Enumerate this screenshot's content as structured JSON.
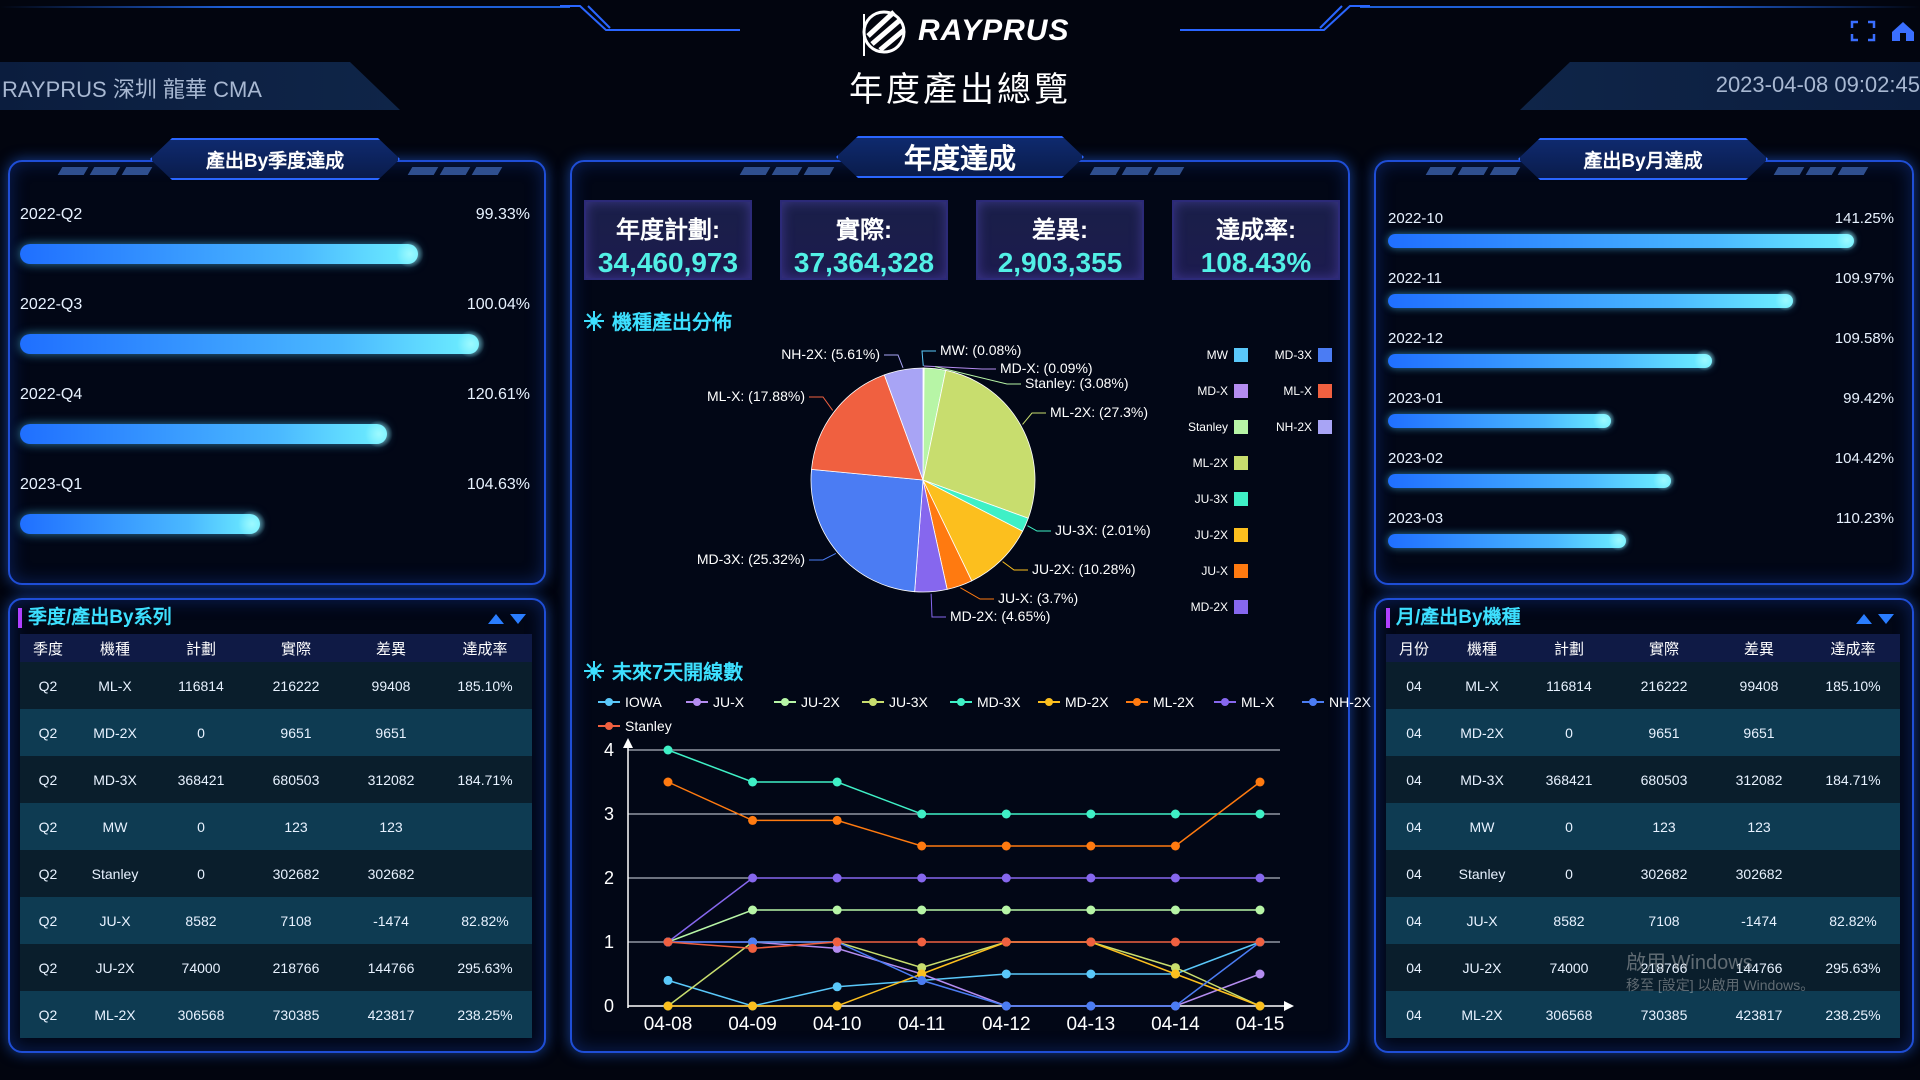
{
  "header": {
    "brand": "RAYPRUS",
    "title": "年度產出總覽",
    "site": "RAYPRUS 深圳 龍華 CMA",
    "datetime": "2023-04-08 09:02:45"
  },
  "quarter_panel": {
    "title": "產出By季度達成",
    "rows": [
      {
        "label": "2022-Q2",
        "pct": "99.33%",
        "value": 99.33
      },
      {
        "label": "2022-Q3",
        "pct": "100.04%",
        "value": 100.04
      },
      {
        "label": "2022-Q4",
        "pct": "120.61%",
        "value": 120.61
      },
      {
        "label": "2023-Q1",
        "pct": "104.63%",
        "value": 104.63
      }
    ]
  },
  "annual_panel": {
    "title": "年度達成",
    "kpis": [
      {
        "label": "年度計劃:",
        "value": "34,460,973"
      },
      {
        "label": "實際:",
        "value": "37,364,328"
      },
      {
        "label": "差異:",
        "value": "2,903,355"
      },
      {
        "label": "達成率:",
        "value": "108.43%"
      }
    ],
    "pie_title": "機種產出分佈",
    "line_title": "未來7天開線數"
  },
  "month_panel": {
    "title": "產出By月達成",
    "rows": [
      {
        "label": "2022-10",
        "pct": "141.25%",
        "value": 141.25
      },
      {
        "label": "2022-11",
        "pct": "109.97%",
        "value": 109.97
      },
      {
        "label": "2022-12",
        "pct": "109.58%",
        "value": 109.58
      },
      {
        "label": "2023-01",
        "pct": "99.42%",
        "value": 99.42
      },
      {
        "label": "2023-02",
        "pct": "104.42%",
        "value": 104.42
      },
      {
        "label": "2023-03",
        "pct": "110.23%",
        "value": 110.23
      }
    ]
  },
  "quarter_table": {
    "title": "季度/產出By系列",
    "headers": [
      "季度",
      "機種",
      "計劃",
      "實際",
      "差異",
      "達成率"
    ],
    "rows": [
      [
        "Q2",
        "ML-X",
        "116814",
        "216222",
        "99408",
        "185.10%"
      ],
      [
        "Q2",
        "MD-2X",
        "0",
        "9651",
        "9651",
        ""
      ],
      [
        "Q2",
        "MD-3X",
        "368421",
        "680503",
        "312082",
        "184.71%"
      ],
      [
        "Q2",
        "MW",
        "0",
        "123",
        "123",
        ""
      ],
      [
        "Q2",
        "Stanley",
        "0",
        "302682",
        "302682",
        ""
      ],
      [
        "Q2",
        "JU-X",
        "8582",
        "7108",
        "-1474",
        "82.82%"
      ],
      [
        "Q2",
        "JU-2X",
        "74000",
        "218766",
        "144766",
        "295.63%"
      ],
      [
        "Q2",
        "ML-2X",
        "306568",
        "730385",
        "423817",
        "238.25%"
      ]
    ]
  },
  "month_table": {
    "title": "月/產出By機種",
    "headers": [
      "月份",
      "機種",
      "計劃",
      "實際",
      "差異",
      "達成率"
    ],
    "rows": [
      [
        "04",
        "ML-X",
        "116814",
        "216222",
        "99408",
        "185.10%"
      ],
      [
        "04",
        "MD-2X",
        "0",
        "9651",
        "9651",
        ""
      ],
      [
        "04",
        "MD-3X",
        "368421",
        "680503",
        "312082",
        "184.71%"
      ],
      [
        "04",
        "MW",
        "0",
        "123",
        "123",
        ""
      ],
      [
        "04",
        "Stanley",
        "0",
        "302682",
        "302682",
        ""
      ],
      [
        "04",
        "JU-X",
        "8582",
        "7108",
        "-1474",
        "82.82%"
      ],
      [
        "04",
        "JU-2X",
        "74000",
        "218766",
        "144766",
        "295.63%"
      ],
      [
        "04",
        "ML-2X",
        "306568",
        "730385",
        "423817",
        "238.25%"
      ]
    ]
  },
  "watermark": {
    "line1": "啟用 Windows",
    "line2": "移至 [設定] 以啟用 Windows。"
  },
  "chart_data": [
    {
      "type": "pie",
      "title": "機種產出分佈",
      "slices": [
        {
          "name": "MW",
          "value": 0.08,
          "label": "MW: (0.08%)",
          "color": "#5ac8fa"
        },
        {
          "name": "MD-X",
          "value": 0.09,
          "label": "MD-X: (0.09%)",
          "color": "#b48cf0"
        },
        {
          "name": "Stanley",
          "value": 3.08,
          "label": "Stanley: (3.08%)",
          "color": "#b7f5a6"
        },
        {
          "name": "ML-2X",
          "value": 27.3,
          "label": "ML-2X: (27.3%)",
          "color": "#c8dd6e"
        },
        {
          "name": "JU-3X",
          "value": 2.01,
          "label": "JU-3X: (2.01%)",
          "color": "#3ff0c6"
        },
        {
          "name": "JU-2X",
          "value": 10.28,
          "label": "JU-2X: (10.28%)",
          "color": "#fcbf1e"
        },
        {
          "name": "JU-X",
          "value": 3.7,
          "label": "JU-X: (3.7%)",
          "color": "#ff7a10"
        },
        {
          "name": "MD-2X",
          "value": 4.65,
          "label": "MD-2X: (4.65%)",
          "color": "#8667ee"
        },
        {
          "name": "MD-3X",
          "value": 25.32,
          "label": "MD-3X: (25.32%)",
          "color": "#4b7cf3"
        },
        {
          "name": "ML-X",
          "value": 17.88,
          "label": "ML-X: (17.88%)",
          "color": "#f06040"
        },
        {
          "name": "NH-2X",
          "value": 5.61,
          "label": "NH-2X: (5.61%)",
          "color": "#a8a4f5"
        }
      ],
      "legend": [
        {
          "name": "MW",
          "color": "#5ac8fa"
        },
        {
          "name": "MD-3X",
          "color": "#4b7cf3"
        },
        {
          "name": "MD-X",
          "color": "#b48cf0"
        },
        {
          "name": "ML-X",
          "color": "#f06040"
        },
        {
          "name": "Stanley",
          "color": "#b7f5a6"
        },
        {
          "name": "NH-2X",
          "color": "#a8a4f5"
        },
        {
          "name": "ML-2X",
          "color": "#c8dd6e"
        },
        {
          "name": "JU-3X",
          "color": "#3ff0c6"
        },
        {
          "name": "JU-2X",
          "color": "#fcbf1e"
        },
        {
          "name": "JU-X",
          "color": "#ff7a10"
        },
        {
          "name": "MD-2X",
          "color": "#8667ee"
        }
      ]
    },
    {
      "type": "line",
      "title": "未來7天開線數",
      "categories": [
        "04-08",
        "04-09",
        "04-10",
        "04-11",
        "04-12",
        "04-13",
        "04-14",
        "04-15"
      ],
      "ylim": [
        0,
        4
      ],
      "yticks": [
        "0",
        "1",
        "2",
        "3",
        "4"
      ],
      "grid": true,
      "legend_position": "top",
      "series": [
        {
          "name": "IOWA",
          "color": "#5ac8fa",
          "values": [
            0.4,
            0,
            0.3,
            0.4,
            0.5,
            0.5,
            0.5,
            1
          ]
        },
        {
          "name": "JU-X",
          "color": "#b48cf0",
          "values": [
            1,
            1,
            0.9,
            0.5,
            0,
            0,
            0,
            0.5
          ]
        },
        {
          "name": "JU-2X",
          "color": "#b7f5a6",
          "values": [
            1,
            1.5,
            1.5,
            1.5,
            1.5,
            1.5,
            1.5,
            1.5
          ]
        },
        {
          "name": "JU-3X",
          "color": "#c8dd6e",
          "values": [
            0,
            1,
            1,
            0.6,
            1,
            1,
            0.6,
            0
          ]
        },
        {
          "name": "MD-3X",
          "color": "#3ff0c6",
          "values": [
            4,
            3.5,
            3.5,
            3,
            3,
            3,
            3,
            3
          ]
        },
        {
          "name": "MD-2X",
          "color": "#fcbf1e",
          "values": [
            0,
            0,
            0,
            0.5,
            1,
            1,
            0.5,
            0
          ]
        },
        {
          "name": "ML-2X",
          "color": "#ff7a10",
          "values": [
            3.5,
            2.9,
            2.9,
            2.5,
            2.5,
            2.5,
            2.5,
            3.5
          ]
        },
        {
          "name": "ML-X",
          "color": "#8667ee",
          "values": [
            1,
            2,
            2,
            2,
            2,
            2,
            2,
            2
          ]
        },
        {
          "name": "NH-2X",
          "color": "#4b7cf3",
          "values": [
            1,
            1,
            1,
            0.4,
            0,
            0,
            0,
            1
          ]
        },
        {
          "name": "Stanley",
          "color": "#f06040",
          "values": [
            1,
            0.9,
            1,
            1,
            1,
            1,
            1,
            1
          ]
        }
      ]
    }
  ]
}
